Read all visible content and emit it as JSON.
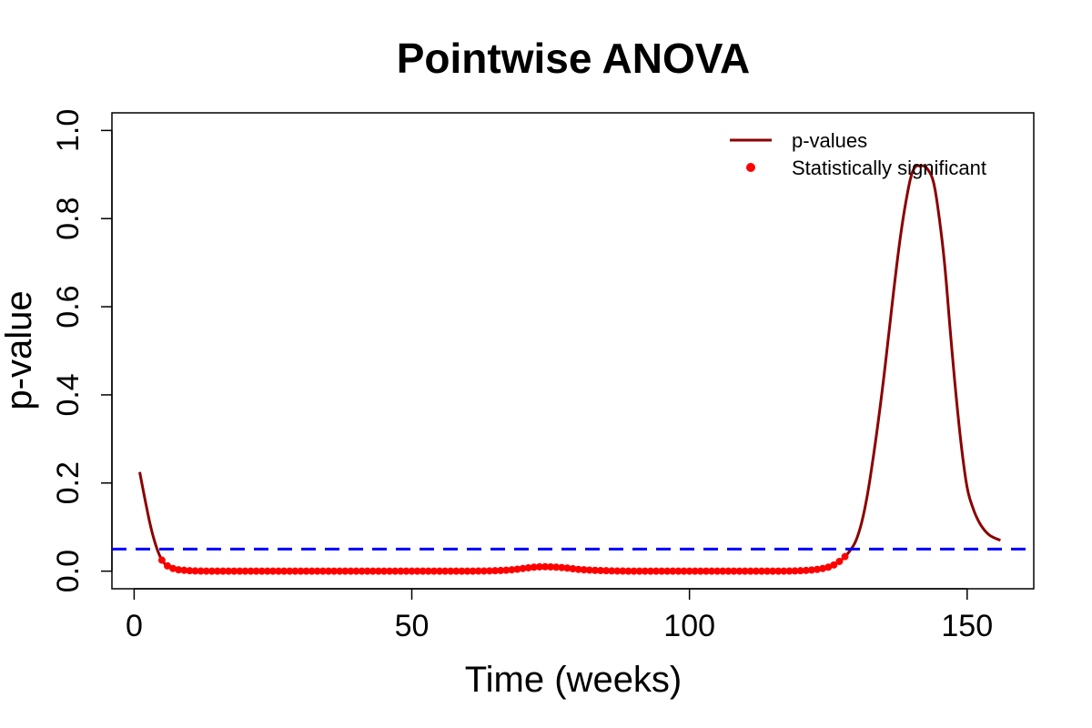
{
  "chart_data": {
    "type": "line",
    "title": "Pointwise ANOVA",
    "xlabel": "Time (weeks)",
    "ylabel": "p-value",
    "xlim": [
      -4,
      162
    ],
    "ylim": [
      -0.04,
      1.04
    ],
    "x_ticks": [
      0,
      50,
      100,
      150
    ],
    "y_ticks": [
      0.0,
      0.2,
      0.4,
      0.6,
      0.8,
      1.0
    ],
    "x_tick_labels": [
      "0",
      "50",
      "100",
      "150"
    ],
    "y_tick_labels": [
      "0.0",
      "0.2",
      "0.4",
      "0.6",
      "0.8",
      "1.0"
    ],
    "threshold": 0.05,
    "legend": {
      "position": "top-right",
      "line_label": "p-values",
      "point_label": "Statistically significant"
    },
    "colors": {
      "line": "#8b0000",
      "points": "#ff0000",
      "threshold": "#0000ff"
    },
    "grid": false,
    "series": [
      {
        "name": "p-values",
        "x": [
          1,
          2,
          3,
          4,
          5,
          6,
          7,
          8,
          9,
          10,
          15,
          20,
          30,
          40,
          50,
          60,
          65,
          68,
          70,
          72,
          74,
          76,
          78,
          80,
          85,
          90,
          100,
          110,
          115,
          120,
          123,
          125,
          126,
          127,
          128,
          129,
          130,
          131,
          132,
          133,
          134,
          135,
          136,
          137,
          138,
          139,
          140,
          141,
          142,
          143,
          144,
          145,
          146,
          147,
          148,
          149,
          150,
          151,
          152,
          153,
          154,
          155,
          156
        ],
        "y": [
          0.225,
          0.16,
          0.1,
          0.055,
          0.025,
          0.012,
          0.006,
          0.003,
          0.002,
          0.001,
          0.0,
          0.0,
          0.0,
          0.0,
          0.0,
          0.0,
          0.001,
          0.003,
          0.006,
          0.009,
          0.01,
          0.009,
          0.007,
          0.004,
          0.001,
          0.0,
          0.0,
          0.0,
          0.0,
          0.001,
          0.004,
          0.009,
          0.014,
          0.022,
          0.033,
          0.048,
          0.07,
          0.11,
          0.17,
          0.25,
          0.34,
          0.44,
          0.55,
          0.66,
          0.76,
          0.84,
          0.9,
          0.92,
          0.92,
          0.91,
          0.88,
          0.8,
          0.69,
          0.54,
          0.4,
          0.28,
          0.19,
          0.145,
          0.115,
          0.095,
          0.082,
          0.075,
          0.07
        ]
      },
      {
        "name": "Statistically significant",
        "x_range": [
          5,
          128
        ],
        "note_shape": "points"
      }
    ]
  }
}
